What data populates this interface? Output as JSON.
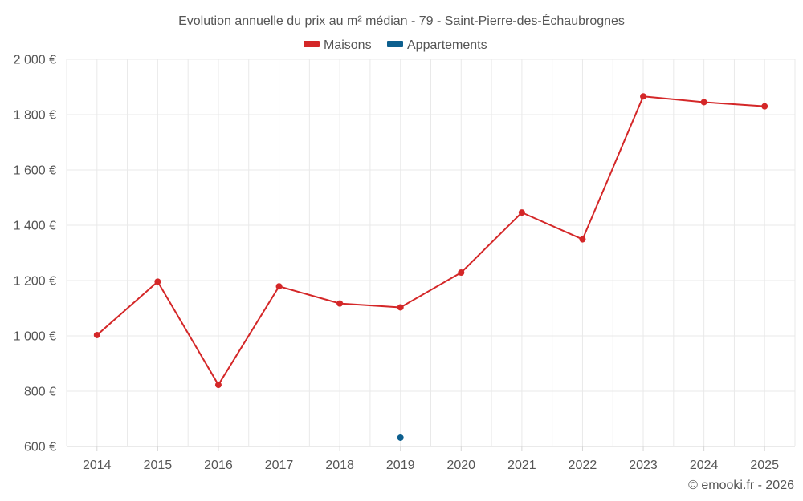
{
  "chart_data": {
    "type": "line",
    "title": "Evolution annuelle du prix au m² médian - 79 - Saint-Pierre-des-Échaubrognes",
    "categories": [
      "2014",
      "2015",
      "2016",
      "2017",
      "2018",
      "2019",
      "2020",
      "2021",
      "2022",
      "2023",
      "2024",
      "2025"
    ],
    "series": [
      {
        "name": "Maisons",
        "color": "#d42728",
        "values": [
          1003,
          1196,
          823,
          1179,
          1117,
          1103,
          1229,
          1446,
          1349,
          1866,
          1845,
          1830
        ]
      },
      {
        "name": "Appartements",
        "color": "#0d5f8e",
        "values": [
          null,
          null,
          null,
          null,
          null,
          632,
          null,
          null,
          null,
          null,
          null,
          null
        ]
      }
    ],
    "ylim": [
      600,
      2000
    ],
    "yticks": [
      600,
      800,
      1000,
      1200,
      1400,
      1600,
      1800,
      2000
    ],
    "ytick_labels": [
      "600 €",
      "800 €",
      "1 000 €",
      "1 200 €",
      "1 400 €",
      "1 600 €",
      "1 800 €",
      "2 000 €"
    ],
    "grid": true,
    "legend_position": "top-center",
    "xlabel": "",
    "ylabel": ""
  },
  "credit": "© emooki.fr - 2026"
}
